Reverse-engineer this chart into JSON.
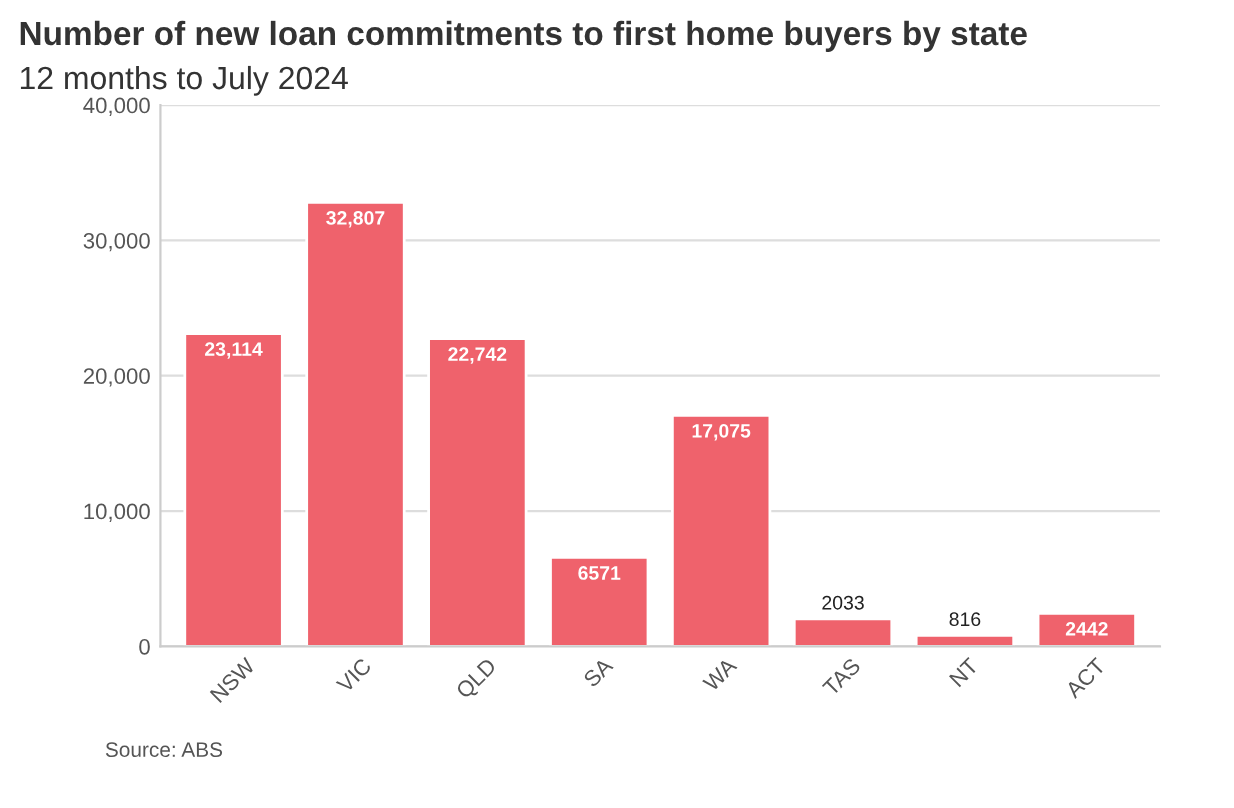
{
  "chart_data": {
    "type": "bar",
    "title": "Number of new loan commitments to first home buyers by state",
    "subtitle": "12 months to July 2024",
    "categories": [
      "NSW",
      "VIC",
      "QLD",
      "SA",
      "WA",
      "TAS",
      "NT",
      "ACT"
    ],
    "values": [
      23114,
      32807,
      22742,
      6571,
      17075,
      2033,
      816,
      2442
    ],
    "value_labels": [
      "23,114",
      "32,807",
      "22,742",
      "6571",
      "17,075",
      "2033",
      "816",
      "2442"
    ],
    "color": "#ef626c",
    "ylim": [
      0,
      40000
    ],
    "yticks": [
      0,
      {
        "value": 10000,
        "label": "10,000"
      },
      {
        "value": 20000,
        "label": "20,000"
      },
      {
        "value": 30000,
        "label": "30,000"
      },
      {
        "value": 40000,
        "label": "40,000"
      }
    ],
    "grid": "y",
    "annotations": [
      "Source: ABS"
    ]
  }
}
